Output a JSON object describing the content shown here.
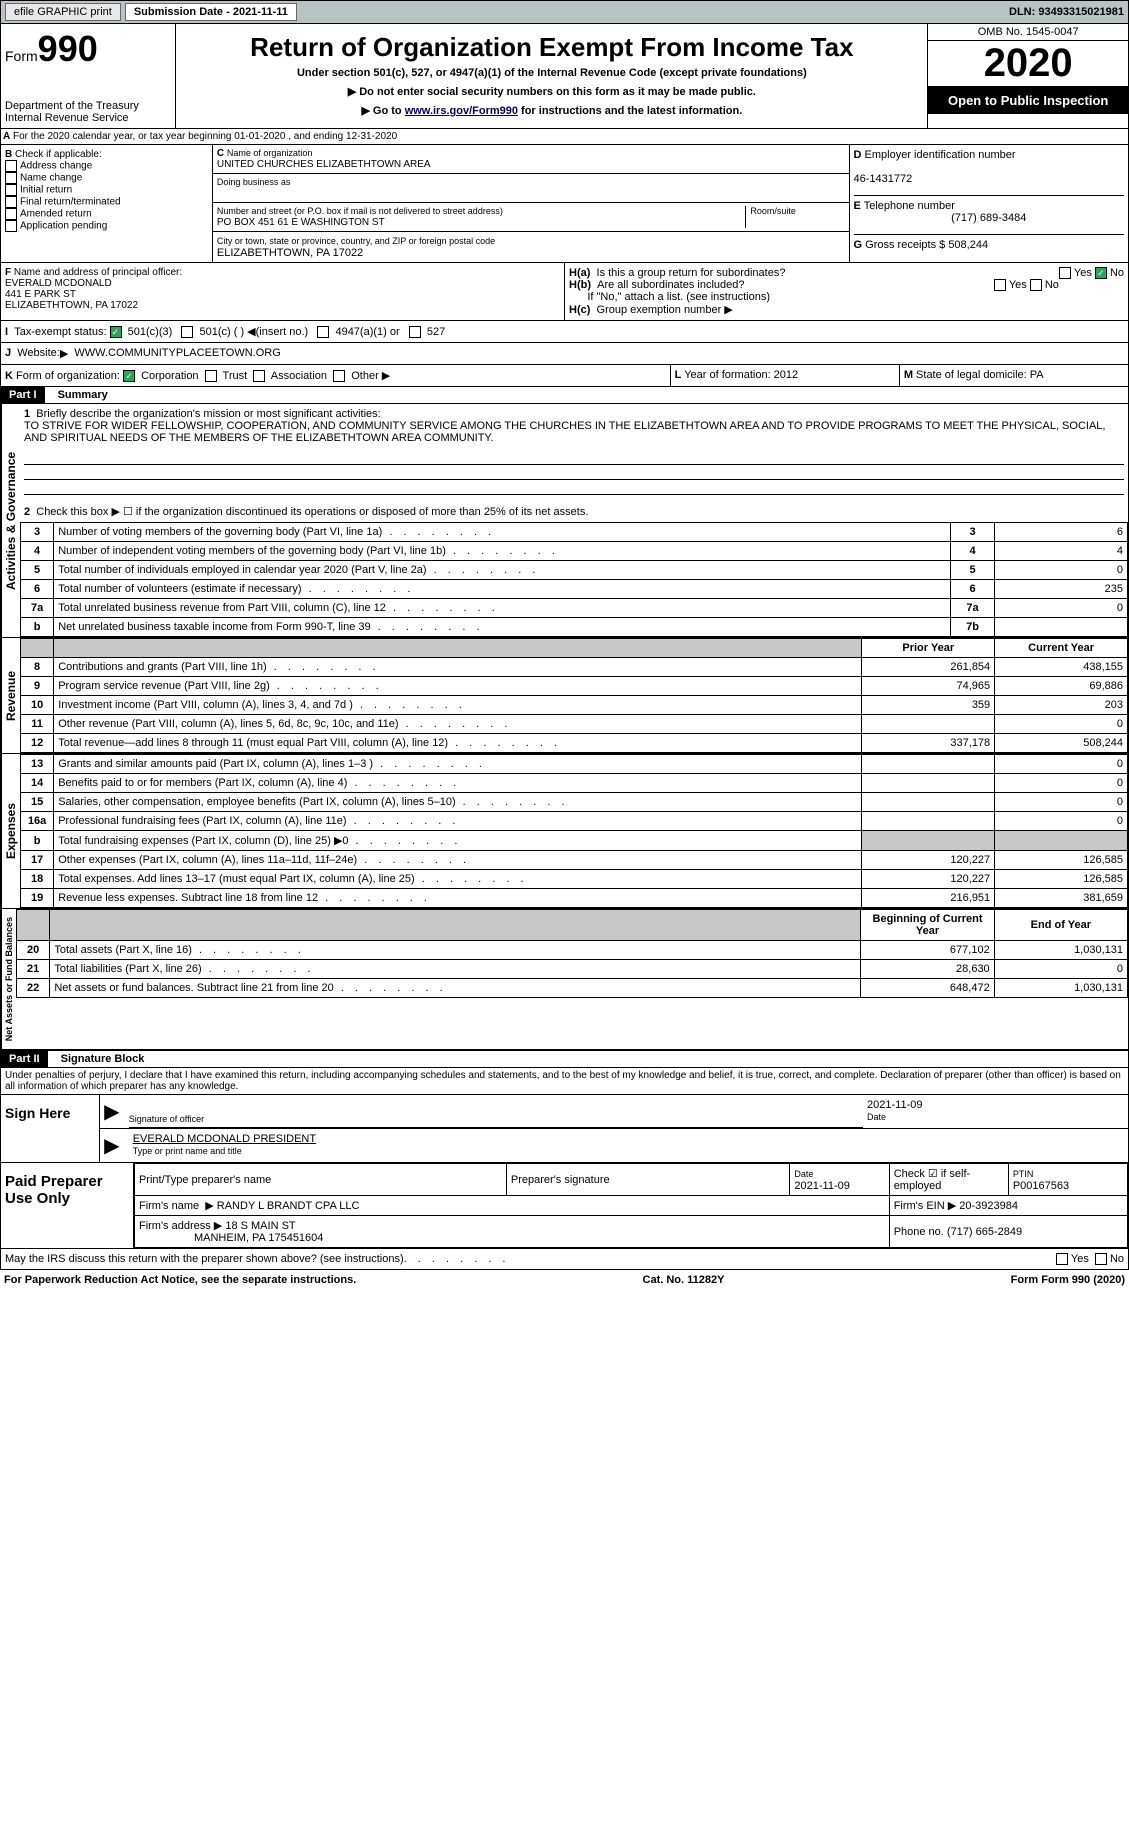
{
  "header": {
    "efile_btn": "efile GRAPHIC print",
    "sub_date_label": "Submission Date - 2021-11-11",
    "dln": "DLN: 93493315021981"
  },
  "form_title": {
    "form_label": "Form",
    "form_num": "990",
    "dept": "Department of the Treasury",
    "irs": "Internal Revenue Service",
    "title": "Return of Organization Exempt From Income Tax",
    "subtitle": "Under section 501(c), 527, or 4947(a)(1) of the Internal Revenue Code (except private foundations)",
    "note1": "Do not enter social security numbers on this form as it may be made public.",
    "note2_pre": "Go to ",
    "note2_link": "www.irs.gov/Form990",
    "note2_post": " for instructions and the latest information.",
    "omb": "OMB No. 1545-0047",
    "year": "2020",
    "open_pub": "Open to Public Inspection"
  },
  "lineA": "For the 2020 calendar year, or tax year beginning 01-01-2020    , and ending 12-31-2020",
  "boxB": {
    "label": "Check if applicable:",
    "items": [
      "Address change",
      "Name change",
      "Initial return",
      "Final return/terminated",
      "Amended return",
      "Application pending"
    ]
  },
  "boxC": {
    "name_label": "Name of organization",
    "name": "UNITED CHURCHES ELIZABETHTOWN AREA",
    "dba_label": "Doing business as",
    "addr_label": "Number and street (or P.O. box if mail is not delivered to street address)",
    "room_label": "Room/suite",
    "addr": "PO BOX 451 61 E WASHINGTON ST",
    "city_label": "City or town, state or province, country, and ZIP or foreign postal code",
    "city": "ELIZABETHTOWN, PA  17022"
  },
  "boxD": {
    "label": "Employer identification number",
    "val": "46-1431772"
  },
  "boxE": {
    "label": "Telephone number",
    "val": "(717) 689-3484"
  },
  "boxG": {
    "label": "Gross receipts $",
    "val": "508,244"
  },
  "boxF": {
    "label": "Name and address of principal officer:",
    "name": "EVERALD MCDONALD",
    "addr1": "441 E PARK ST",
    "addr2": "ELIZABETHTOWN, PA  17022"
  },
  "boxH": {
    "a": "Is this a group return for subordinates?",
    "b": "Are all subordinates included?",
    "note": "If \"No,\" attach a list. (see instructions)",
    "c": "Group exemption number"
  },
  "boxI": {
    "label": "Tax-exempt status:",
    "opts": [
      "501(c)(3)",
      "501(c) (  )",
      "(insert no.)",
      "4947(a)(1) or",
      "527"
    ]
  },
  "boxJ": {
    "label": "Website:",
    "val": "WWW.COMMUNITYPLACEETOWN.ORG"
  },
  "boxK": {
    "label": "Form of organization:",
    "opts": [
      "Corporation",
      "Trust",
      "Association",
      "Other"
    ]
  },
  "boxL": {
    "label": "Year of formation: 2012"
  },
  "boxM": {
    "label": "State of legal domicile: PA"
  },
  "part1": {
    "title": "Part I",
    "subtitle": "Summary",
    "q1": "Briefly describe the organization's mission or most significant activities:",
    "mission": "TO STRIVE FOR WIDER FELLOWSHIP, COOPERATION, AND COMMUNITY SERVICE AMONG THE CHURCHES IN THE ELIZABETHTOWN AREA AND TO PROVIDE PROGRAMS TO MEET THE PHYSICAL, SOCIAL, AND SPIRITUAL NEEDS OF THE MEMBERS OF THE ELIZABETHTOWN AREA COMMUNITY.",
    "q2": "Check this box ▶ ☐  if the organization discontinued its operations or disposed of more than 25% of its net assets.",
    "lines": [
      {
        "n": "3",
        "t": "Number of voting members of the governing body (Part VI, line 1a)",
        "box": "3",
        "v": "6"
      },
      {
        "n": "4",
        "t": "Number of independent voting members of the governing body (Part VI, line 1b)",
        "box": "4",
        "v": "4"
      },
      {
        "n": "5",
        "t": "Total number of individuals employed in calendar year 2020 (Part V, line 2a)",
        "box": "5",
        "v": "0"
      },
      {
        "n": "6",
        "t": "Total number of volunteers (estimate if necessary)",
        "box": "6",
        "v": "235"
      },
      {
        "n": "7a",
        "t": "Total unrelated business revenue from Part VIII, column (C), line 12",
        "box": "7a",
        "v": "0"
      },
      {
        "n": "b",
        "t": "Net unrelated business taxable income from Form 990-T, line 39",
        "box": "7b",
        "v": ""
      }
    ],
    "colheads": {
      "prior": "Prior Year",
      "curr": "Current Year"
    },
    "rev": [
      {
        "n": "8",
        "t": "Contributions and grants (Part VIII, line 1h)",
        "p": "261,854",
        "c": "438,155"
      },
      {
        "n": "9",
        "t": "Program service revenue (Part VIII, line 2g)",
        "p": "74,965",
        "c": "69,886"
      },
      {
        "n": "10",
        "t": "Investment income (Part VIII, column (A), lines 3, 4, and 7d )",
        "p": "359",
        "c": "203"
      },
      {
        "n": "11",
        "t": "Other revenue (Part VIII, column (A), lines 5, 6d, 8c, 9c, 10c, and 11e)",
        "p": "",
        "c": "0"
      },
      {
        "n": "12",
        "t": "Total revenue—add lines 8 through 11 (must equal Part VIII, column (A), line 12)",
        "p": "337,178",
        "c": "508,244"
      }
    ],
    "exp": [
      {
        "n": "13",
        "t": "Grants and similar amounts paid (Part IX, column (A), lines 1–3 )",
        "p": "",
        "c": "0"
      },
      {
        "n": "14",
        "t": "Benefits paid to or for members (Part IX, column (A), line 4)",
        "p": "",
        "c": "0"
      },
      {
        "n": "15",
        "t": "Salaries, other compensation, employee benefits (Part IX, column (A), lines 5–10)",
        "p": "",
        "c": "0"
      },
      {
        "n": "16a",
        "t": "Professional fundraising fees (Part IX, column (A), line 11e)",
        "p": "",
        "c": "0"
      },
      {
        "n": "b",
        "t": "Total fundraising expenses (Part IX, column (D), line 25) ▶0",
        "p": "GREY",
        "c": "GREY"
      },
      {
        "n": "17",
        "t": "Other expenses (Part IX, column (A), lines 11a–11d, 11f–24e)",
        "p": "120,227",
        "c": "126,585"
      },
      {
        "n": "18",
        "t": "Total expenses. Add lines 13–17 (must equal Part IX, column (A), line 25)",
        "p": "120,227",
        "c": "126,585"
      },
      {
        "n": "19",
        "t": "Revenue less expenses. Subtract line 18 from line 12",
        "p": "216,951",
        "c": "381,659"
      }
    ],
    "balheads": {
      "beg": "Beginning of Current Year",
      "end": "End of Year"
    },
    "bal": [
      {
        "n": "20",
        "t": "Total assets (Part X, line 16)",
        "p": "677,102",
        "c": "1,030,131"
      },
      {
        "n": "21",
        "t": "Total liabilities (Part X, line 26)",
        "p": "28,630",
        "c": "0"
      },
      {
        "n": "22",
        "t": "Net assets or fund balances. Subtract line 21 from line 20",
        "p": "648,472",
        "c": "1,030,131"
      }
    ]
  },
  "part2": {
    "title": "Part II",
    "subtitle": "Signature Block",
    "decl": "Under penalties of perjury, I declare that I have examined this return, including accompanying schedules and statements, and to the best of my knowledge and belief, it is true, correct, and complete. Declaration of preparer (other than officer) is based on all information of which preparer has any knowledge.",
    "sign_here": "Sign Here",
    "sig_officer": "Signature of officer",
    "sig_date": "2021-11-09",
    "date_lbl": "Date",
    "officer_name": "EVERALD MCDONALD PRESIDENT",
    "officer_type": "Type or print name and title",
    "paid": "Paid Preparer Use Only",
    "prep_name_lbl": "Print/Type preparer's name",
    "prep_sig_lbl": "Preparer's signature",
    "prep_date": "2021-11-09",
    "check_if": "Check ☑ if self-employed",
    "ptin_lbl": "PTIN",
    "ptin": "P00167563",
    "firm_name_lbl": "Firm's name",
    "firm_name": "RANDY L BRANDT CPA LLC",
    "firm_ein_lbl": "Firm's EIN",
    "firm_ein": "20-3923984",
    "firm_addr_lbl": "Firm's address",
    "firm_addr": "18 S MAIN ST",
    "firm_city": "MANHEIM, PA  175451604",
    "phone_lbl": "Phone no.",
    "phone": "(717) 665-2849",
    "discuss": "May the IRS discuss this return with the preparer shown above? (see instructions)"
  },
  "footer": {
    "pra": "For Paperwork Reduction Act Notice, see the separate instructions.",
    "cat": "Cat. No. 11282Y",
    "form": "Form 990 (2020)"
  },
  "vert_labels": {
    "gov": "Activities & Governance",
    "rev": "Revenue",
    "exp": "Expenses",
    "bal": "Net Assets or Fund Balances"
  }
}
